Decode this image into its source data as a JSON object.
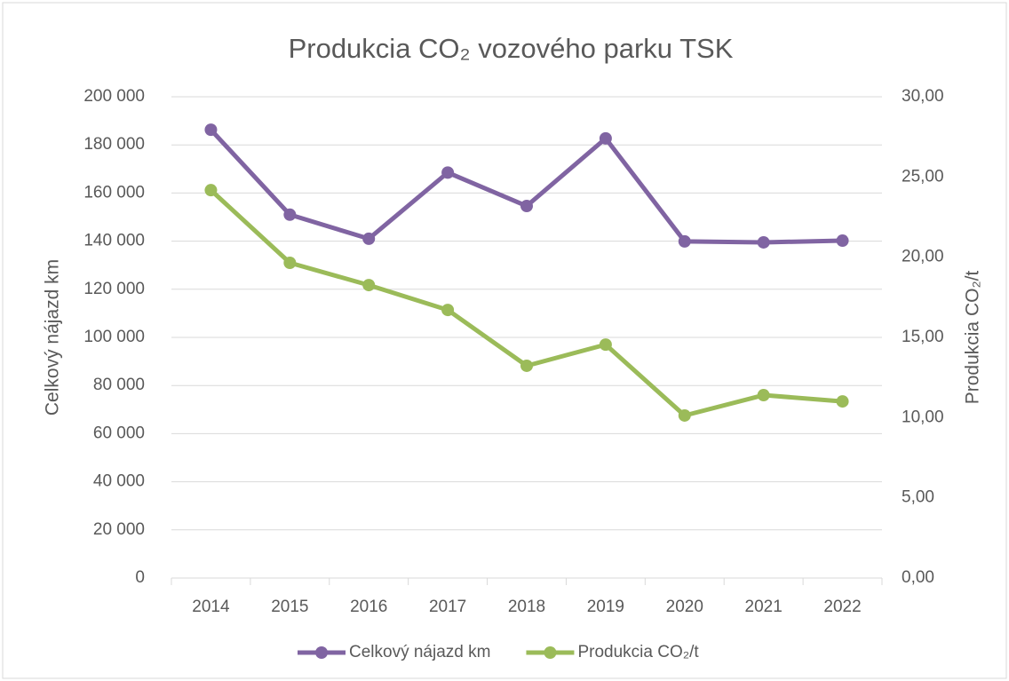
{
  "chart_data": {
    "type": "line",
    "title": "Produkcia CO₂ vozového parku TSK",
    "y_label": "Celkový nájazd km",
    "y2_label": "Produkcia CO₂/t",
    "categories": [
      "2014",
      "2015",
      "2016",
      "2017",
      "2018",
      "2019",
      "2020",
      "2021",
      "2022"
    ],
    "series": [
      {
        "name": "Celkový nájazd km",
        "color": "#8064a2",
        "values": [
          186300,
          151000,
          141000,
          168500,
          154600,
          182700,
          139900,
          139500,
          140200
        ]
      },
      {
        "name": "Produkcia CO₂/t",
        "color": "#9bbb59",
        "axis": "y2",
        "values": [
          24.18,
          19.65,
          18.26,
          16.71,
          13.23,
          14.55,
          10.13,
          11.4,
          11.01
        ]
      }
    ],
    "ylim": [
      0,
      200000
    ],
    "yticks": [
      0,
      {
        "value": 20000,
        "label": "20 000"
      },
      {
        "value": 40000,
        "label": "40 000"
      },
      {
        "value": 60000,
        "label": "60 000"
      },
      {
        "value": 80000,
        "label": "80 000"
      },
      {
        "value": 100000,
        "label": "100 000"
      },
      {
        "value": 120000,
        "label": "120 000"
      },
      {
        "value": 140000,
        "label": "140 000"
      },
      {
        "value": 160000,
        "label": "160 000"
      },
      {
        "value": 180000,
        "label": "180 000"
      },
      {
        "value": 200000,
        "label": "200 000"
      }
    ],
    "y2lim": [
      0,
      30
    ],
    "y2ticks": [
      {
        "value": 0,
        "label": "0,00"
      },
      {
        "value": 5,
        "label": "5,00"
      },
      {
        "value": 10,
        "label": "10,00"
      },
      {
        "value": 15,
        "label": "15,00"
      },
      {
        "value": 20,
        "label": "20,00"
      },
      {
        "value": 25,
        "label": "25,00"
      },
      {
        "value": 30,
        "label": "30,00"
      }
    ],
    "grid": true,
    "legend": "bottom"
  }
}
